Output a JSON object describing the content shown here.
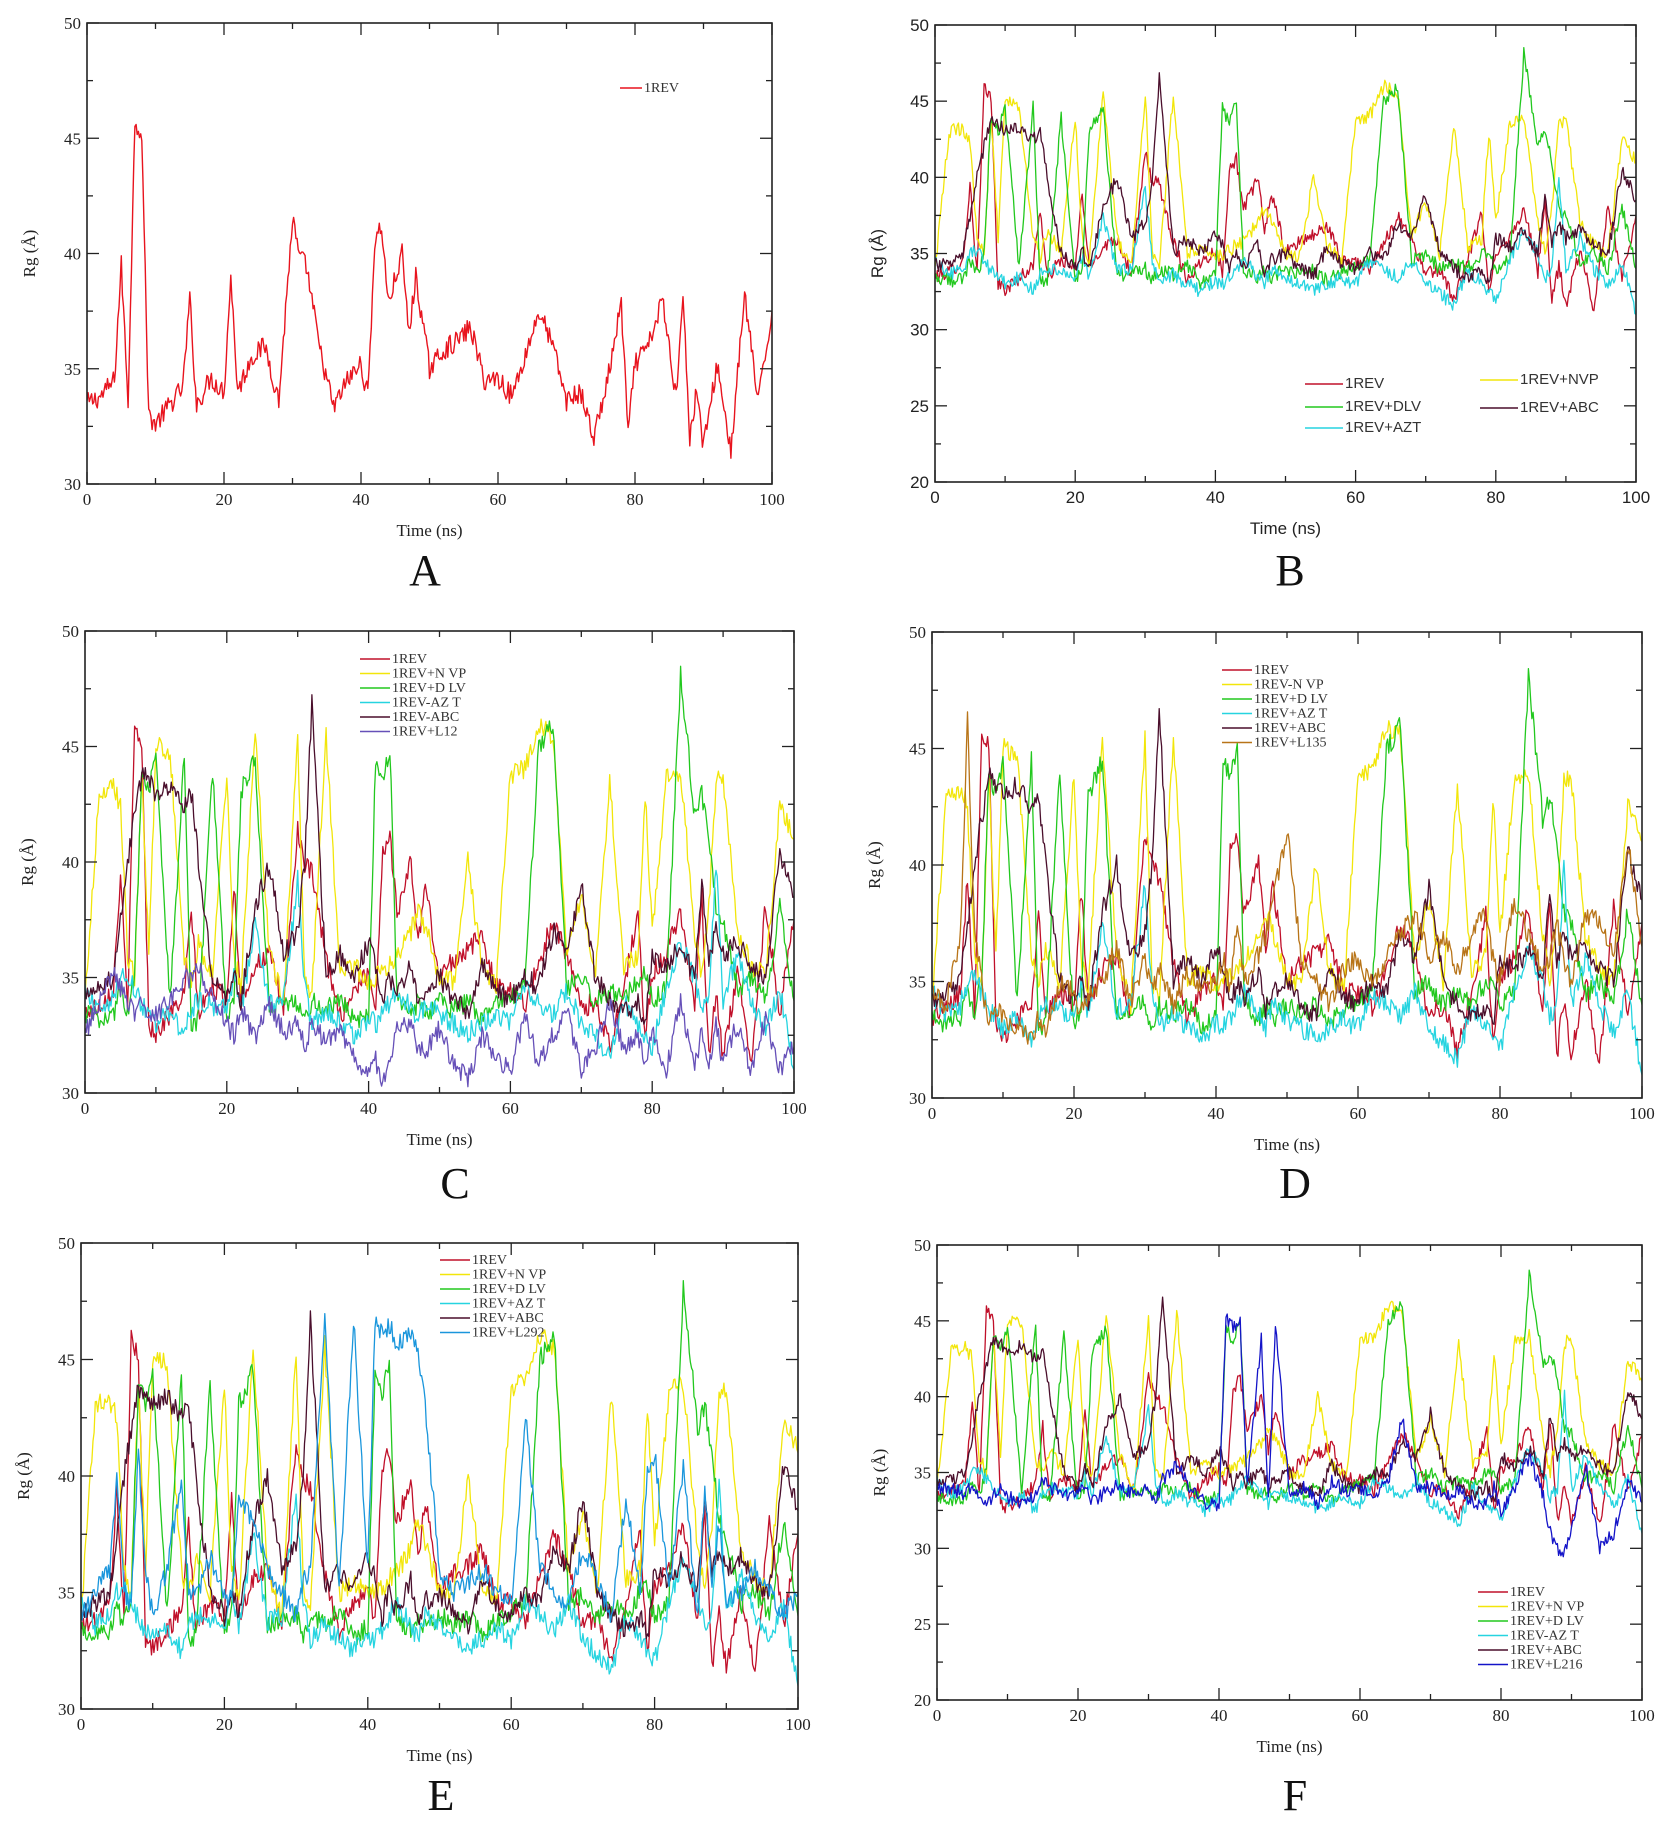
{
  "chart_data": [
    {
      "panel": "A",
      "type": "line",
      "xlabel": "Time (ns)",
      "ylabel": "Rg (Å)",
      "xlim": [
        0,
        100
      ],
      "ylim": [
        30,
        50
      ],
      "xticks": [
        "0",
        "20",
        "40",
        "60",
        "80",
        "100"
      ],
      "yticks": [
        "30",
        "35",
        "40",
        "45",
        "50"
      ],
      "legend_placement": "top-right",
      "series_keys": [
        "rev"
      ]
    },
    {
      "panel": "B",
      "type": "line",
      "xlabel": "Time (ns)",
      "ylabel": "Rg (Å)",
      "xlim": [
        0,
        100
      ],
      "ylim": [
        20,
        50
      ],
      "xticks": [
        "0",
        "20",
        "40",
        "60",
        "80",
        "100"
      ],
      "yticks": [
        "20",
        "25",
        "30",
        "35",
        "40",
        "45",
        "50"
      ],
      "legend_placement": "bottom-right",
      "series_keys": [
        "rev",
        "nvp",
        "dlv",
        "azt",
        "abc"
      ]
    },
    {
      "panel": "C",
      "type": "line",
      "xlabel": "Time (ns)",
      "ylabel": "Rg (Å)",
      "xlim": [
        0,
        100
      ],
      "ylim": [
        30,
        50
      ],
      "xticks": [
        "0",
        "20",
        "40",
        "60",
        "80",
        "100"
      ],
      "yticks": [
        "30",
        "35",
        "40",
        "45",
        "50"
      ],
      "legend_placement": "top-center",
      "series_keys": [
        "rev",
        "nvp",
        "dlv",
        "azt",
        "abc",
        "l12"
      ]
    },
    {
      "panel": "D",
      "type": "line",
      "xlabel": "Time (ns)",
      "ylabel": "Rg (Å)",
      "xlim": [
        0,
        100
      ],
      "ylim": [
        30,
        50
      ],
      "xticks": [
        "0",
        "20",
        "40",
        "60",
        "80",
        "100"
      ],
      "yticks": [
        "30",
        "35",
        "40",
        "45",
        "50"
      ],
      "legend_placement": "top-center",
      "series_keys": [
        "rev",
        "nvp",
        "dlv",
        "azt",
        "abc",
        "l135"
      ]
    },
    {
      "panel": "E",
      "type": "line",
      "xlabel": "Time (ns)",
      "ylabel": "Rg (Å)",
      "xlim": [
        0,
        100
      ],
      "ylim": [
        30,
        50
      ],
      "xticks": [
        "0",
        "20",
        "40",
        "60",
        "80",
        "100"
      ],
      "yticks": [
        "30",
        "35",
        "40",
        "45",
        "50"
      ],
      "legend_placement": "top-center",
      "series_keys": [
        "rev",
        "nvp",
        "dlv",
        "azt",
        "abc",
        "l292"
      ]
    },
    {
      "panel": "F",
      "type": "line",
      "xlabel": "Time (ns)",
      "ylabel": "Rg (Å)",
      "xlim": [
        0,
        100
      ],
      "ylim": [
        20,
        50
      ],
      "xticks": [
        "0",
        "20",
        "40",
        "60",
        "80",
        "100"
      ],
      "yticks": [
        "20",
        "25",
        "30",
        "35",
        "40",
        "45",
        "50"
      ],
      "legend_placement": "bottom-right",
      "series_keys": [
        "rev",
        "nvp",
        "dlv",
        "azt",
        "abc",
        "l216"
      ]
    }
  ],
  "series": {
    "x": [
      0,
      2,
      4,
      5,
      6,
      7,
      8,
      9,
      10,
      12,
      14,
      15,
      16,
      18,
      20,
      21,
      22,
      24,
      26,
      28,
      30,
      31,
      32,
      34,
      36,
      38,
      40,
      41,
      42,
      43,
      44,
      46,
      47,
      48,
      50,
      52,
      54,
      56,
      58,
      60,
      62,
      64,
      66,
      68,
      70,
      72,
      74,
      76,
      78,
      79,
      80,
      82,
      84,
      86,
      87,
      88,
      89,
      90,
      92,
      94,
      96,
      98,
      100
    ],
    "rev": {
      "color": "#e8141e",
      "values": [
        33.5,
        33.8,
        34.5,
        39.5,
        33.6,
        45.8,
        45.2,
        33.0,
        32.6,
        33.4,
        34.2,
        38.0,
        33.4,
        34.6,
        34.0,
        39.0,
        34.0,
        35.5,
        36.0,
        33.6,
        41.5,
        39.8,
        39.5,
        35.8,
        33.3,
        34.5,
        35.2,
        33.8,
        40.5,
        41.2,
        37.8,
        40.0,
        36.5,
        39.0,
        35.0,
        35.8,
        36.2,
        36.8,
        34.5,
        34.6,
        33.8,
        35.6,
        37.5,
        36.0,
        33.6,
        34.0,
        32.0,
        34.5,
        37.8,
        32.2,
        35.2,
        36.0,
        38.0,
        33.8,
        38.5,
        31.8,
        34.2,
        31.6,
        35.2,
        31.4,
        38.2,
        33.5,
        37.5
      ]
    },
    "rev_multi": {
      "color": "#c0102a",
      "values": [
        33.5,
        33.8,
        34.5,
        39.5,
        33.6,
        45.8,
        45.2,
        33.0,
        32.6,
        33.4,
        34.2,
        38.0,
        33.4,
        34.6,
        34.0,
        39.0,
        34.0,
        35.5,
        36.0,
        33.6,
        41.5,
        39.8,
        39.5,
        35.8,
        33.3,
        34.5,
        35.2,
        33.8,
        40.5,
        41.2,
        37.8,
        40.0,
        36.5,
        39.0,
        35.0,
        35.8,
        36.2,
        36.8,
        34.5,
        34.6,
        33.8,
        35.6,
        37.5,
        36.0,
        33.6,
        34.0,
        32.0,
        34.5,
        37.8,
        32.2,
        35.2,
        36.0,
        38.0,
        33.8,
        38.5,
        31.8,
        34.2,
        31.6,
        35.2,
        31.4,
        38.2,
        33.5,
        37.5
      ]
    },
    "nvp": {
      "color": "#f2e60a",
      "values": [
        34.0,
        43.0,
        43.2,
        42.5,
        36.0,
        35.0,
        44.0,
        36.0,
        45.0,
        44.8,
        36.0,
        34.8,
        36.5,
        35.0,
        44.0,
        36.0,
        34.5,
        45.6,
        36.0,
        34.0,
        45.5,
        35.0,
        34.2,
        45.6,
        35.0,
        35.5,
        34.8,
        35.0,
        35.2,
        35.6,
        35.8,
        37.0,
        38.0,
        37.2,
        35.0,
        34.8,
        40.0,
        35.4,
        34.6,
        43.8,
        44.0,
        46.0,
        45.5,
        36.0,
        38.5,
        35.0,
        43.5,
        35.5,
        36.0,
        43.0,
        37.0,
        43.6,
        44.0,
        37.0,
        35.0,
        38.0,
        43.5,
        43.8,
        37.0,
        35.5,
        35.0,
        42.5,
        41.0
      ]
    },
    "dlv": {
      "color": "#22c81e",
      "values": [
        33.5,
        33.2,
        33.4,
        34.5,
        33.6,
        35.0,
        44.0,
        43.0,
        44.5,
        34.0,
        44.6,
        33.0,
        33.2,
        44.0,
        33.0,
        34.0,
        43.0,
        44.5,
        33.5,
        33.8,
        34.0,
        33.2,
        34.0,
        33.6,
        34.2,
        33.0,
        33.5,
        44.5,
        43.6,
        45.0,
        34.0,
        33.4,
        34.0,
        33.4,
        34.0,
        33.6,
        34.0,
        33.2,
        33.8,
        34.2,
        34.6,
        45.0,
        46.0,
        34.5,
        35.0,
        34.0,
        34.4,
        34.0,
        35.0,
        35.2,
        34.0,
        34.6,
        48.2,
        42.0,
        43.0,
        41.0,
        38.0,
        37.5,
        34.5,
        35.0,
        34.0,
        38.0,
        34.0
      ]
    },
    "azt": {
      "color": "#26d4e0",
      "values": [
        34.5,
        33.6,
        34.0,
        35.0,
        35.2,
        34.5,
        33.8,
        33.4,
        33.0,
        33.5,
        32.5,
        33.6,
        34.0,
        33.8,
        33.6,
        35.0,
        33.5,
        37.5,
        33.8,
        34.0,
        39.2,
        34.6,
        33.0,
        33.6,
        33.0,
        32.5,
        33.2,
        33.0,
        33.4,
        34.0,
        34.5,
        33.6,
        33.0,
        34.0,
        33.4,
        33.0,
        32.6,
        33.0,
        33.4,
        33.0,
        34.6,
        34.0,
        33.4,
        34.5,
        33.0,
        32.4,
        31.6,
        34.0,
        33.0,
        32.5,
        32.0,
        34.6,
        36.5,
        35.0,
        33.4,
        34.0,
        40.0,
        34.0,
        36.0,
        34.0,
        32.8,
        34.5,
        31.0
      ]
    },
    "abc": {
      "color": "#4a0f2c",
      "values": [
        34.2,
        34.5,
        35.0,
        37.5,
        40.0,
        42.0,
        43.8,
        43.5,
        43.0,
        43.4,
        42.5,
        43.0,
        40.0,
        35.0,
        34.0,
        35.2,
        34.0,
        38.0,
        40.0,
        36.0,
        37.0,
        40.0,
        46.8,
        35.0,
        36.0,
        35.0,
        36.5,
        35.6,
        34.0,
        35.0,
        34.2,
        35.5,
        33.8,
        34.6,
        35.0,
        34.0,
        33.5,
        35.5,
        34.4,
        34.0,
        35.0,
        34.6,
        37.0,
        36.0,
        39.0,
        35.0,
        34.0,
        33.4,
        34.0,
        33.0,
        36.0,
        35.4,
        36.5,
        35.0,
        39.0,
        35.8,
        37.0,
        36.0,
        36.5,
        35.5,
        35.0,
        40.5,
        38.5
      ]
    },
    "l12": {
      "color": "#6650b8",
      "values": [
        32.5,
        34.0,
        35.2,
        34.5,
        34.0,
        33.4,
        33.8,
        33.0,
        33.5,
        34.0,
        35.0,
        34.8,
        35.4,
        34.0,
        33.0,
        32.5,
        33.6,
        32.4,
        33.8,
        32.6,
        33.2,
        32.0,
        33.0,
        32.2,
        32.8,
        31.4,
        30.8,
        31.4,
        30.6,
        31.2,
        32.8,
        33.0,
        32.0,
        31.8,
        32.8,
        31.2,
        30.6,
        32.5,
        31.6,
        31.0,
        33.4,
        31.2,
        32.5,
        33.5,
        31.0,
        32.0,
        33.8,
        32.0,
        32.5,
        31.0,
        32.8,
        31.0,
        34.0,
        31.2,
        32.6,
        31.0,
        33.0,
        31.2,
        33.0,
        31.0,
        33.2,
        31.0,
        32.0
      ]
    },
    "l135": {
      "color": "#b87418",
      "values": [
        34.5,
        34.0,
        37.0,
        46.2,
        37.0,
        35.0,
        33.0,
        34.0,
        33.6,
        33.0,
        32.5,
        33.5,
        33.0,
        35.0,
        34.5,
        33.6,
        34.5,
        35.0,
        36.5,
        34.0,
        36.0,
        34.5,
        35.6,
        34.0,
        35.4,
        34.5,
        35.0,
        36.0,
        34.8,
        37.5,
        35.0,
        36.2,
        37.0,
        38.5,
        41.5,
        36.0,
        35.0,
        34.0,
        35.5,
        36.0,
        34.8,
        36.0,
        37.0,
        38.0,
        36.0,
        37.0,
        35.4,
        37.0,
        38.0,
        36.0,
        35.0,
        38.6,
        37.0,
        35.5,
        36.0,
        37.5,
        36.0,
        35.0,
        38.0,
        37.5,
        36.0,
        41.0,
        36.5
      ]
    },
    "l292": {
      "color": "#1a96dc",
      "values": [
        34.0,
        35.0,
        36.0,
        40.0,
        35.0,
        34.5,
        41.0,
        36.0,
        34.0,
        36.0,
        40.0,
        35.0,
        34.8,
        36.5,
        35.0,
        34.6,
        39.0,
        38.0,
        36.0,
        35.0,
        34.0,
        35.5,
        36.0,
        46.8,
        35.0,
        46.8,
        36.0,
        46.5,
        46.0,
        46.5,
        45.8,
        46.0,
        45.5,
        43.0,
        36.0,
        35.0,
        35.5,
        36.0,
        35.0,
        34.5,
        42.5,
        36.0,
        35.0,
        34.5,
        37.0,
        35.5,
        34.0,
        39.0,
        35.0,
        40.0,
        41.0,
        35.0,
        40.5,
        34.0,
        39.5,
        35.0,
        38.0,
        34.5,
        35.0,
        36.0,
        35.0,
        34.0,
        35.0
      ]
    },
    "l216": {
      "color": "#1414c8",
      "values": [
        33.8,
        34.0,
        33.5,
        34.2,
        33.6,
        33.0,
        33.5,
        34.0,
        33.4,
        33.0,
        33.6,
        34.4,
        34.0,
        33.6,
        33.5,
        34.0,
        33.0,
        33.8,
        34.2,
        33.4,
        34.0,
        33.0,
        34.5,
        35.5,
        34.0,
        33.0,
        32.8,
        45.2,
        44.5,
        45.0,
        34.0,
        44.0,
        33.0,
        45.0,
        33.5,
        34.0,
        33.0,
        34.4,
        33.8,
        34.0,
        33.5,
        34.5,
        38.5,
        34.0,
        34.0,
        33.5,
        33.8,
        33.0,
        33.0,
        34.0,
        32.5,
        34.0,
        36.0,
        33.5,
        31.0,
        30.0,
        29.8,
        31.5,
        35.5,
        30.0,
        31.0,
        34.5,
        33.0
      ]
    }
  },
  "legends": {
    "A": [
      {
        "key": "rev",
        "label": "1REV"
      }
    ],
    "B": [
      {
        "key": "rev_multi",
        "label": "1REV"
      },
      {
        "key": "dlv",
        "label": "1REV+DLV"
      },
      {
        "key": "azt",
        "label": "1REV+AZT"
      },
      {
        "key": "nvp",
        "label": "1REV+NVP"
      },
      {
        "key": "abc",
        "label": "1REV+ABC"
      }
    ],
    "C": [
      {
        "key": "rev_multi",
        "label": "1REV"
      },
      {
        "key": "nvp",
        "label": "1REV+N VP"
      },
      {
        "key": "dlv",
        "label": "1REV+D LV"
      },
      {
        "key": "azt",
        "label": "1REV-AZ T"
      },
      {
        "key": "abc",
        "label": "1REV-ABC"
      },
      {
        "key": "l12",
        "label": "1REV+L12"
      }
    ],
    "D": [
      {
        "key": "rev_multi",
        "label": "1REV"
      },
      {
        "key": "nvp",
        "label": "1REV-N VP"
      },
      {
        "key": "dlv",
        "label": "1REV+D LV"
      },
      {
        "key": "azt",
        "label": "1REV+AZ T"
      },
      {
        "key": "abc",
        "label": "1REV+ABC"
      },
      {
        "key": "l135",
        "label": "1REV+L135"
      }
    ],
    "E": [
      {
        "key": "rev_multi",
        "label": "1REV"
      },
      {
        "key": "nvp",
        "label": "1REV+N VP"
      },
      {
        "key": "dlv",
        "label": "1REV+D LV"
      },
      {
        "key": "azt",
        "label": "1REV+AZ T"
      },
      {
        "key": "abc",
        "label": "1REV+ABC"
      },
      {
        "key": "l292",
        "label": "1REV+L292"
      }
    ],
    "F": [
      {
        "key": "rev_multi",
        "label": "1REV"
      },
      {
        "key": "nvp",
        "label": "1REV+N VP"
      },
      {
        "key": "dlv",
        "label": "1REV+D LV"
      },
      {
        "key": "azt",
        "label": "1REV-AZ T"
      },
      {
        "key": "abc",
        "label": "1REV+ABC"
      },
      {
        "key": "l216",
        "label": "1REV+L216"
      }
    ]
  },
  "panel_letters": {
    "A": "A",
    "B": "B",
    "C": "C",
    "D": "D",
    "E": "E",
    "F": "F"
  }
}
